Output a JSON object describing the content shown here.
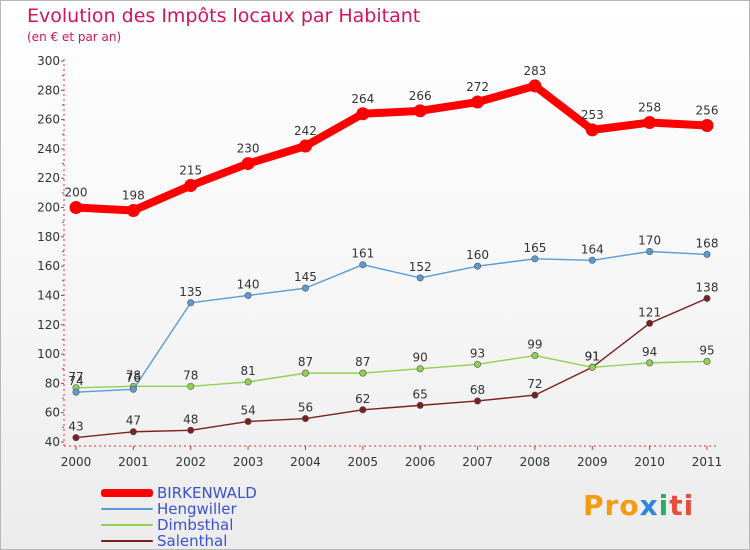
{
  "title": "Evolution des Impôts locaux par Habitant",
  "subtitle": "(en € et par an)",
  "logo": {
    "p1": "Pro",
    "p2": "x",
    "p3": "i",
    "p4": "ti"
  },
  "chart_data": {
    "type": "line",
    "title": "Evolution des Impôts locaux par Habitant",
    "subtitle": "(en € et par an)",
    "xlabel": "",
    "ylabel": "",
    "x": [
      "2000",
      "2001",
      "2002",
      "2003",
      "2004",
      "2005",
      "2006",
      "2007",
      "2008",
      "2009",
      "2010",
      "2011"
    ],
    "ylim": [
      40,
      300
    ],
    "yticks": [
      40,
      60,
      80,
      100,
      120,
      140,
      160,
      180,
      200,
      220,
      240,
      260,
      280,
      300
    ],
    "grid": false,
    "legend": "bottom-left",
    "series": [
      {
        "name": "BIRKENWALD",
        "color": "#ff0000",
        "values": [
          200,
          198,
          215,
          230,
          242,
          264,
          266,
          272,
          283,
          253,
          258,
          256
        ]
      },
      {
        "name": "Hengwiller",
        "color": "#5b9bd5",
        "values": [
          74,
          76,
          135,
          140,
          145,
          161,
          152,
          160,
          165,
          164,
          170,
          168
        ]
      },
      {
        "name": "Dimbsthal",
        "color": "#92d050",
        "values": [
          77,
          78,
          78,
          81,
          87,
          87,
          90,
          93,
          99,
          91,
          94,
          95
        ]
      },
      {
        "name": "Salenthal",
        "color": "#7b2020",
        "values": [
          43,
          47,
          48,
          54,
          56,
          62,
          65,
          68,
          72,
          91,
          121,
          138
        ]
      }
    ]
  }
}
